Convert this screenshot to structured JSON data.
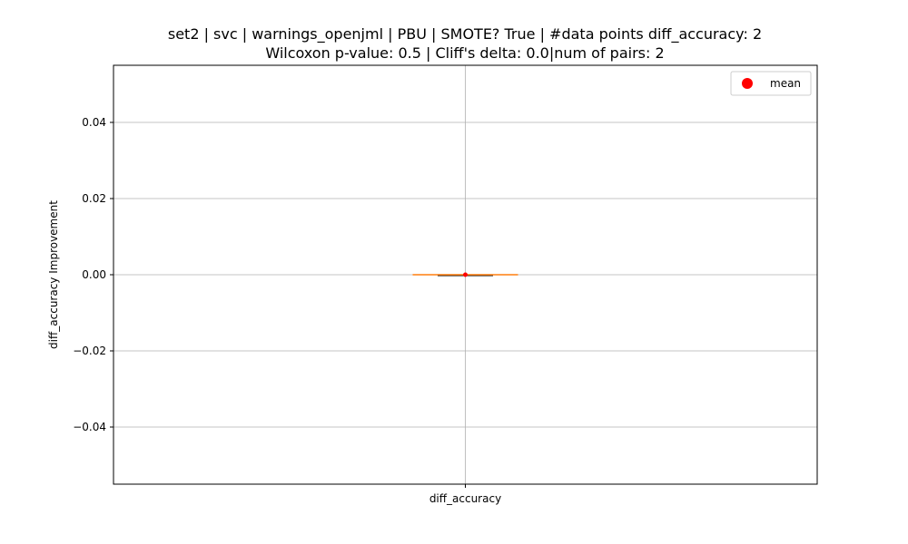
{
  "chart_data": {
    "type": "box",
    "title_lines": [
      "set2 | svc | warnings_openjml | PBU | SMOTE? True | #data points diff_accuracy: 2",
      "Wilcoxon p-value: 0.5 | Cliff's delta: 0.0|num of pairs: 2"
    ],
    "xlabel": "",
    "ylabel": "diff_accuracy Improvement",
    "categories": [
      "diff_accuracy"
    ],
    "ylim": [
      -0.055,
      0.055
    ],
    "yticks": [
      0.04,
      0.02,
      0.0,
      -0.02,
      -0.04
    ],
    "ytick_labels": [
      "0.04",
      "0.02",
      "0.00",
      "−0.02",
      "−0.04"
    ],
    "grid": true,
    "legend": {
      "placement": "top-right",
      "entries": [
        {
          "label": "mean",
          "color": "#ff0000",
          "marker": "circle"
        }
      ]
    },
    "boxes": [
      {
        "category": "diff_accuracy",
        "min": 0.0,
        "q1": 0.0,
        "median": 0.0,
        "q3": 0.0,
        "max": 0.0,
        "mean": 0.0
      }
    ],
    "colors": {
      "box": "#000000",
      "median": "#ff7f0e",
      "mean": "#ff0000"
    }
  }
}
